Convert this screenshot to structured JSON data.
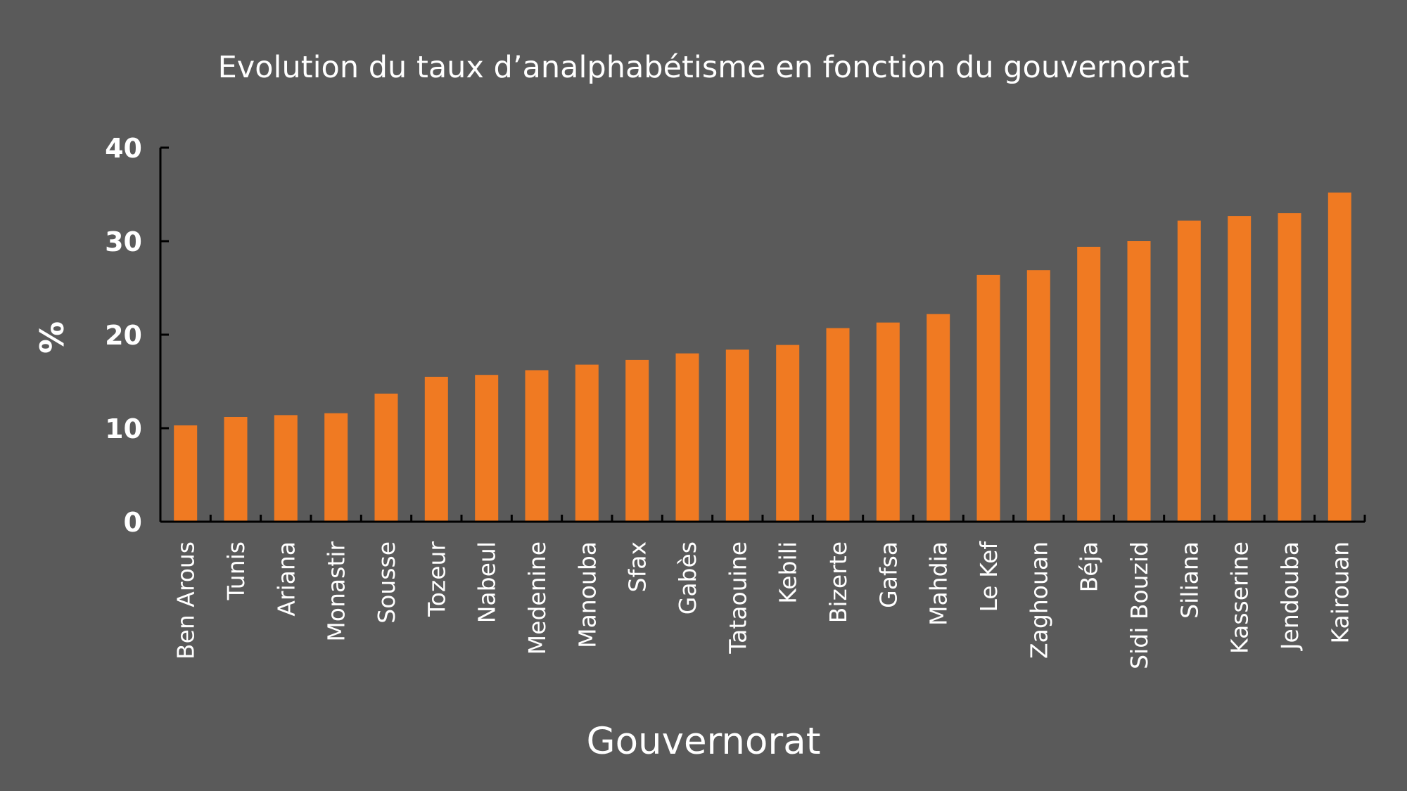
{
  "chart_data": {
    "type": "bar",
    "title": "Evolution du taux d’analphabétisme en fonction du gouvernorat",
    "xlabel": "Gouvernorat",
    "ylabel": "%",
    "ylim": [
      0,
      40
    ],
    "yticks": [
      "0",
      "10",
      "20",
      "30",
      "40"
    ],
    "grid": false,
    "legend": "none",
    "colors": {
      "bar": "#f07a22",
      "background": "#5a5a5a",
      "text": "#ffffff",
      "axis": "#000000"
    },
    "categories": [
      "Ben Arous",
      "Tunis",
      "Ariana",
      "Monastir",
      "Sousse",
      "Tozeur",
      "Nabeul",
      "Medenine",
      "Manouba",
      "Sfax",
      "Gabès",
      "Tataouine",
      "Kebili",
      "Bizerte",
      "Gafsa",
      "Mahdia",
      "Le Kef",
      "Zaghouan",
      "Béja",
      "Sidi Bouzid",
      "Siliana",
      "Kasserine",
      "Jendouba",
      "Kairouan"
    ],
    "values": [
      10.3,
      11.2,
      11.4,
      11.6,
      13.7,
      15.5,
      15.7,
      16.2,
      16.8,
      17.3,
      18.0,
      18.4,
      18.9,
      20.7,
      21.3,
      22.2,
      26.4,
      26.9,
      29.4,
      30.0,
      32.2,
      32.7,
      33.0,
      35.2
    ]
  }
}
